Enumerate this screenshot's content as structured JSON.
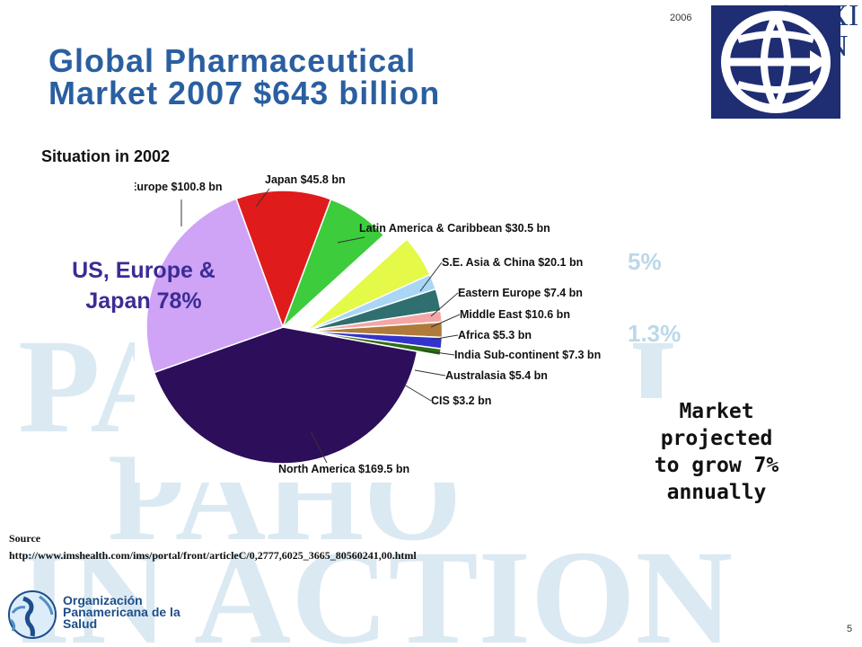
{
  "header": {
    "year": "2006",
    "title_line1": "Global Pharmaceutical",
    "title_line2": "Market 2007 $643 billion"
  },
  "chart_caption": "Situation in 2002",
  "chart_data": {
    "type": "pie",
    "unit": "bn",
    "slices": [
      {
        "label": "Japan $45.8 bn",
        "value": 45.8,
        "color": "#e01b1b"
      },
      {
        "label": "Latin America & Caribbean $30.5 bn",
        "value": 30.5,
        "color": "#3ccc3c"
      },
      {
        "label": "S.E. Asia & China $20.1 bn",
        "value": 20.1,
        "color": "#e4f948"
      },
      {
        "label": "Eastern Europe $7.4 bn",
        "value": 7.4,
        "color": "#a9d6f5"
      },
      {
        "label": "Middle East $10.6 bn",
        "value": 10.6,
        "color": "#2f6f6f"
      },
      {
        "label": "Africa $5.3 bn",
        "value": 5.3,
        "color": "#f4a6a6"
      },
      {
        "label": "India Sub-continent $7.3 bn",
        "value": 7.3,
        "color": "#b07a3a"
      },
      {
        "label": "Australasia $5.4 bn",
        "value": 5.4,
        "color": "#3333cc"
      },
      {
        "label": "CIS $3.2 bn",
        "value": 3.2,
        "color": "#2e6e12"
      },
      {
        "label": "North America $169.5 bn",
        "value": 169.5,
        "color": "#2d0e5a"
      },
      {
        "label": "Europe $100.8 bn",
        "value": 100.8,
        "color": "#cfa3f5"
      }
    ]
  },
  "callouts": {
    "us_europe_japan_line1": "US, Europe &",
    "us_europe_japan_line2": "Japan 78%",
    "pct_top": "5%",
    "pct_bottom": "1.3%"
  },
  "growth_note": {
    "line1": "Market",
    "line2": "projected",
    "line3": "to grow 7%",
    "line4": "annually"
  },
  "source": {
    "label": "Source",
    "url": "http://www.imshealth.com/ims/portal/front/articleC/0,2777,6025_3665_80560241,00.html"
  },
  "footer": {
    "org_line1": "Organización",
    "org_line2": "Panamericana de la",
    "org_line3": "Salud",
    "slide_number": "5"
  },
  "logo": {
    "text_line1": "PAHO XXI",
    "text_line2": "N"
  },
  "watermark": {
    "line1": "PAHO XXI",
    "line2": "PAHO",
    "line3": "IN ACTION"
  }
}
